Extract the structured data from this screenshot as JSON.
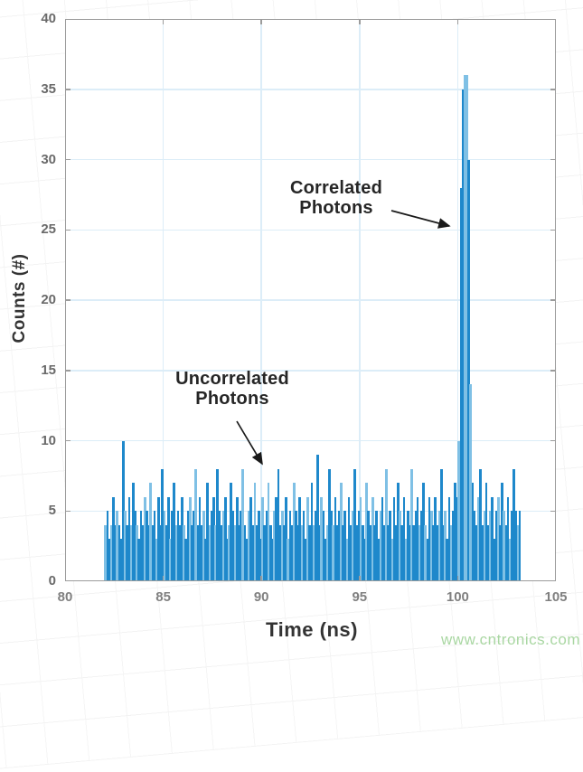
{
  "chart_data": {
    "type": "bar",
    "subtype": "histogram",
    "title": "",
    "xlabel": "Time (ns)",
    "ylabel": "Counts (#)",
    "xlim": [
      80,
      105
    ],
    "ylim": [
      0,
      40
    ],
    "x_ticks": [
      80,
      85,
      90,
      95,
      100,
      105
    ],
    "y_ticks": [
      0,
      5,
      10,
      15,
      20,
      25,
      30,
      35,
      40
    ],
    "grid": true,
    "legend": "none",
    "bin_start": 82.0,
    "bin_width": 0.1,
    "counts": [
      4,
      5,
      3,
      4,
      6,
      4,
      5,
      4,
      3,
      10,
      5,
      4,
      6,
      4,
      7,
      5,
      4,
      3,
      5,
      4,
      6,
      5,
      4,
      7,
      4,
      5,
      3,
      6,
      4,
      8,
      5,
      4,
      6,
      3,
      5,
      7,
      4,
      5,
      4,
      6,
      4,
      3,
      5,
      6,
      4,
      5,
      8,
      4,
      6,
      4,
      5,
      3,
      7,
      4,
      5,
      6,
      4,
      8,
      5,
      4,
      5,
      6,
      3,
      4,
      7,
      5,
      4,
      6,
      4,
      5,
      8,
      4,
      3,
      5,
      6,
      4,
      7,
      4,
      5,
      3,
      6,
      4,
      5,
      7,
      4,
      3,
      5,
      6,
      8,
      4,
      5,
      4,
      6,
      3,
      5,
      4,
      7,
      5,
      4,
      6,
      4,
      5,
      3,
      6,
      4,
      7,
      4,
      5,
      9,
      4,
      6,
      5,
      3,
      4,
      8,
      5,
      4,
      6,
      4,
      5,
      7,
      4,
      5,
      3,
      6,
      4,
      5,
      8,
      4,
      5,
      6,
      4,
      3,
      7,
      5,
      4,
      6,
      4,
      5,
      3,
      5,
      6,
      4,
      8,
      4,
      5,
      3,
      6,
      4,
      7,
      5,
      4,
      6,
      3,
      5,
      4,
      8,
      4,
      5,
      6,
      4,
      5,
      7,
      4,
      3,
      6,
      5,
      4,
      6,
      4,
      5,
      8,
      4,
      5,
      3,
      6,
      4,
      5,
      7,
      6,
      10,
      28,
      35,
      36,
      36,
      30,
      14,
      7,
      5,
      4,
      6,
      8,
      4,
      5,
      7,
      4,
      5,
      6,
      3,
      5,
      6,
      4,
      7,
      5,
      4,
      6,
      3,
      5,
      8,
      5,
      4,
      5
    ],
    "peak": {
      "time": 100.35,
      "count": 36
    },
    "noise_range": [
      3,
      10
    ],
    "colors": {
      "bar": "#1e88cb",
      "bar_light": "#7fc0e5",
      "grid": "#dcedf8",
      "axis": "#9b9b9b",
      "tick_text": "#808080",
      "label_text": "#333333",
      "annotation_text": "#262626",
      "arrow": "#1a1a1a"
    }
  },
  "annotations": {
    "correlated": {
      "line1": "Correlated",
      "line2": "Photons"
    },
    "uncorrelated": {
      "line1": "Uncorrelated",
      "line2": "Photons"
    }
  },
  "watermark": {
    "text": "www.cntronics.com",
    "color": "#a9d7a2"
  }
}
